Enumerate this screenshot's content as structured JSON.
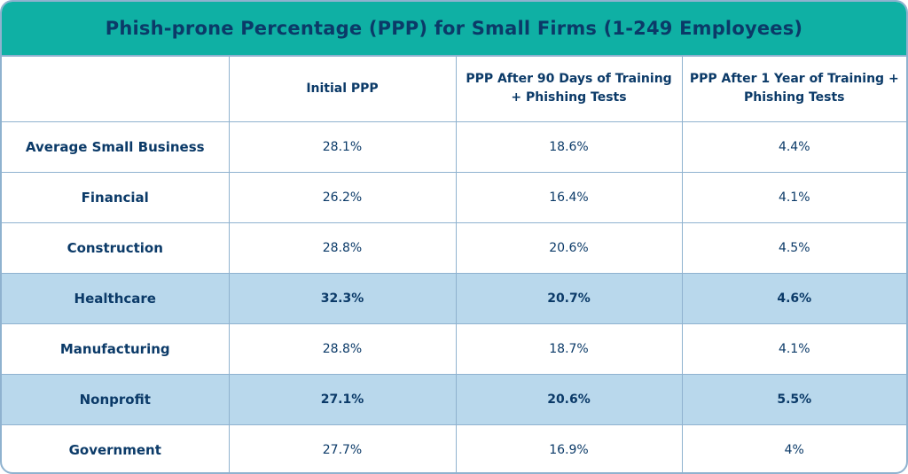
{
  "chart_data": {
    "type": "table",
    "title": "Phish-prone Percentage (PPP) for Small Firms (1-249 Employees)",
    "columns": [
      "",
      "Initial PPP",
      "PPP After 90 Days of Training + Phishing Tests",
      "PPP After 1 Year of Training + Phishing Tests"
    ],
    "rows": [
      {
        "label": "Average Small Business",
        "values": [
          "28.1%",
          "18.6%",
          "4.4%"
        ],
        "highlight": false
      },
      {
        "label": "Financial",
        "values": [
          "26.2%",
          "16.4%",
          "4.1%"
        ],
        "highlight": false
      },
      {
        "label": "Construction",
        "values": [
          "28.8%",
          "20.6%",
          "4.5%"
        ],
        "highlight": false
      },
      {
        "label": "Healthcare",
        "values": [
          "32.3%",
          "20.7%",
          "4.6%"
        ],
        "highlight": true
      },
      {
        "label": "Manufacturing",
        "values": [
          "28.8%",
          "18.7%",
          "4.1%"
        ],
        "highlight": false
      },
      {
        "label": "Nonprofit",
        "values": [
          "27.1%",
          "20.6%",
          "5.5%"
        ],
        "highlight": true
      },
      {
        "label": "Government",
        "values": [
          "27.7%",
          "16.9%",
          "4%"
        ],
        "highlight": false
      }
    ]
  },
  "colors": {
    "title_bar": "#0fb0a4",
    "text": "#0b3a68",
    "highlight_row": "#b9d8ec",
    "border": "#8fb2cf"
  }
}
